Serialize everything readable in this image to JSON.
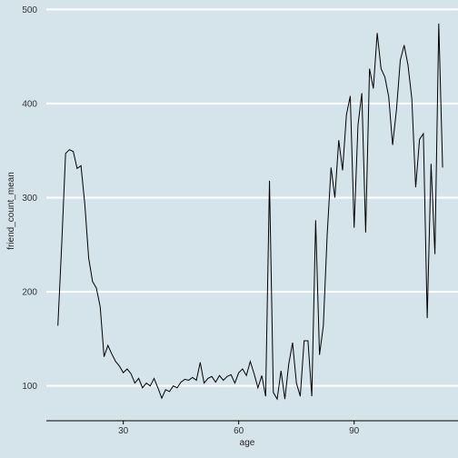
{
  "chart_data": {
    "type": "line",
    "xlabel": "age",
    "ylabel": "friend_count_mean",
    "xlim": [
      10,
      117
    ],
    "ylim": [
      63,
      510
    ],
    "x_ticks": [
      30,
      60,
      90
    ],
    "y_ticks": [
      100,
      200,
      300,
      400,
      500
    ],
    "grid": "horizontal",
    "background_color": "#d5e4eb",
    "grid_color": "#ffffff",
    "line_color": "#000000",
    "series": [
      {
        "x": [
          13,
          14,
          15,
          16,
          17,
          18,
          19,
          20,
          21,
          22,
          23,
          24,
          25,
          26,
          27,
          28,
          29,
          30,
          31,
          32,
          33,
          34,
          35,
          36,
          37,
          38,
          39,
          40,
          41,
          42,
          43,
          44,
          45,
          46,
          47,
          48,
          49,
          50,
          51,
          52,
          53,
          54,
          55,
          56,
          57,
          58,
          59,
          60,
          61,
          62,
          63,
          64,
          65,
          66,
          67,
          68,
          69,
          70,
          71,
          72,
          73,
          74,
          75,
          76,
          77,
          78,
          79,
          80,
          81,
          82,
          83,
          84,
          85,
          86,
          87,
          88,
          89,
          90,
          91,
          92,
          93,
          94,
          95,
          96,
          97,
          98,
          99,
          100,
          101,
          102,
          103,
          104,
          105,
          106,
          107,
          108,
          109,
          110,
          111,
          112,
          113
        ],
        "y": [
          164,
          251,
          347,
          351,
          349,
          331,
          334,
          293,
          236,
          211,
          204,
          184,
          131,
          143,
          134,
          126,
          121,
          114,
          118,
          113,
          103,
          108,
          98,
          103,
          100,
          108,
          98,
          87,
          96,
          94,
          100,
          98,
          104,
          107,
          106,
          109,
          106,
          125,
          103,
          108,
          110,
          104,
          111,
          106,
          110,
          112,
          103,
          114,
          118,
          111,
          126,
          113,
          98,
          111,
          89,
          318,
          93,
          86,
          116,
          86,
          123,
          146,
          103,
          89,
          148,
          148,
          89,
          276,
          133,
          164,
          261,
          332,
          300,
          361,
          329,
          388,
          408,
          268,
          377,
          411,
          263,
          437,
          416,
          475,
          437,
          428,
          407,
          356,
          393,
          446,
          462,
          441,
          405,
          311,
          362,
          368,
          172,
          336,
          240,
          485,
          332
        ]
      }
    ]
  }
}
